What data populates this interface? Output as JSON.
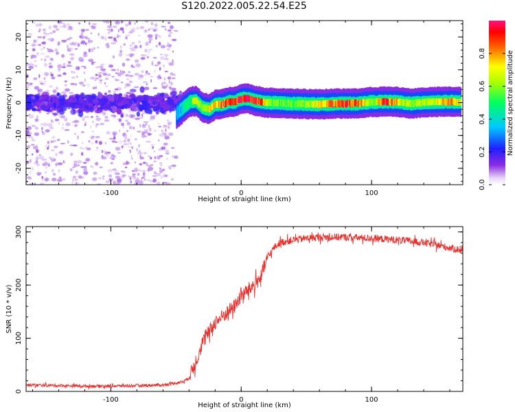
{
  "title": "S120.2022.005.22.54.E25",
  "colors": {
    "snr_line": "#e8302d",
    "noise_purple": "#a060e8",
    "axis": "#000000"
  },
  "chart_data": [
    {
      "type": "heatmap",
      "xlabel": "Height of straight line (km)",
      "ylabel": "Frequency (Hz)",
      "xlim": [
        -165,
        170
      ],
      "ylim": [
        -25,
        25
      ],
      "xticks": [
        -100,
        0,
        100
      ],
      "yticks": [
        -20,
        -10,
        0,
        10,
        20
      ],
      "grid": false,
      "colorbar": {
        "label": "Normalized spectral amplitude",
        "range": [
          0,
          1
        ],
        "ticks": [
          0.0,
          0.2,
          0.4,
          0.6,
          0.8
        ],
        "colormap": "rainbow"
      },
      "signal_track": {
        "x": [
          -50,
          -45,
          -40,
          -35,
          -30,
          -25,
          -20,
          -15,
          -10,
          -5,
          0,
          5,
          10,
          15,
          20,
          40,
          60,
          70,
          80,
          90,
          100,
          110,
          120,
          130,
          140,
          150,
          160,
          168
        ],
        "y": [
          -3.5,
          -1.5,
          0.2,
          0.5,
          -1.5,
          -2,
          -0.5,
          -0.5,
          0.2,
          0.3,
          1.2,
          1.2,
          0.6,
          0.2,
          0,
          -0.3,
          -0.5,
          -0.3,
          -0.3,
          -0.2,
          0.2,
          0.3,
          0.2,
          -0.3,
          0.1,
          0.2,
          0.3,
          0.2
        ],
        "amplitude": [
          0.3,
          0.4,
          0.5,
          0.7,
          0.6,
          0.7,
          0.8,
          0.85,
          0.85,
          0.9,
          0.95,
          0.95,
          0.9,
          0.85,
          0.6,
          0.55,
          0.7,
          0.85,
          0.9,
          0.8,
          0.6,
          0.9,
          0.7,
          0.6,
          0.65,
          0.7,
          0.85,
          0.7
        ]
      },
      "noise_region": {
        "x_range": [
          -165,
          -50
        ],
        "y_range": [
          -25,
          25
        ],
        "core_band_hz": [
          -5,
          5
        ],
        "amplitude_range": [
          0.05,
          0.2
        ]
      }
    },
    {
      "type": "line",
      "xlabel": "Height of straight line (km)",
      "ylabel": "SNR (10 * v/v)",
      "xlim": [
        -165,
        170
      ],
      "ylim": [
        0,
        310
      ],
      "xticks": [
        -100,
        0,
        100
      ],
      "yticks": [
        0,
        100,
        200,
        300
      ],
      "grid": false,
      "series": [
        {
          "x": [
            -165,
            -140,
            -120,
            -100,
            -80,
            -60,
            -45,
            -40,
            -35,
            -30,
            -25,
            -20,
            -15,
            -10,
            -5,
            0,
            5,
            10,
            15,
            20,
            25,
            30,
            40,
            50,
            60,
            80,
            100,
            120,
            140,
            160,
            170
          ],
          "values": [
            12,
            11,
            10,
            10,
            11,
            12,
            18,
            25,
            55,
            90,
            110,
            130,
            140,
            150,
            160,
            180,
            190,
            200,
            215,
            250,
            270,
            280,
            285,
            288,
            290,
            290,
            288,
            285,
            280,
            270,
            265
          ]
        }
      ]
    }
  ]
}
